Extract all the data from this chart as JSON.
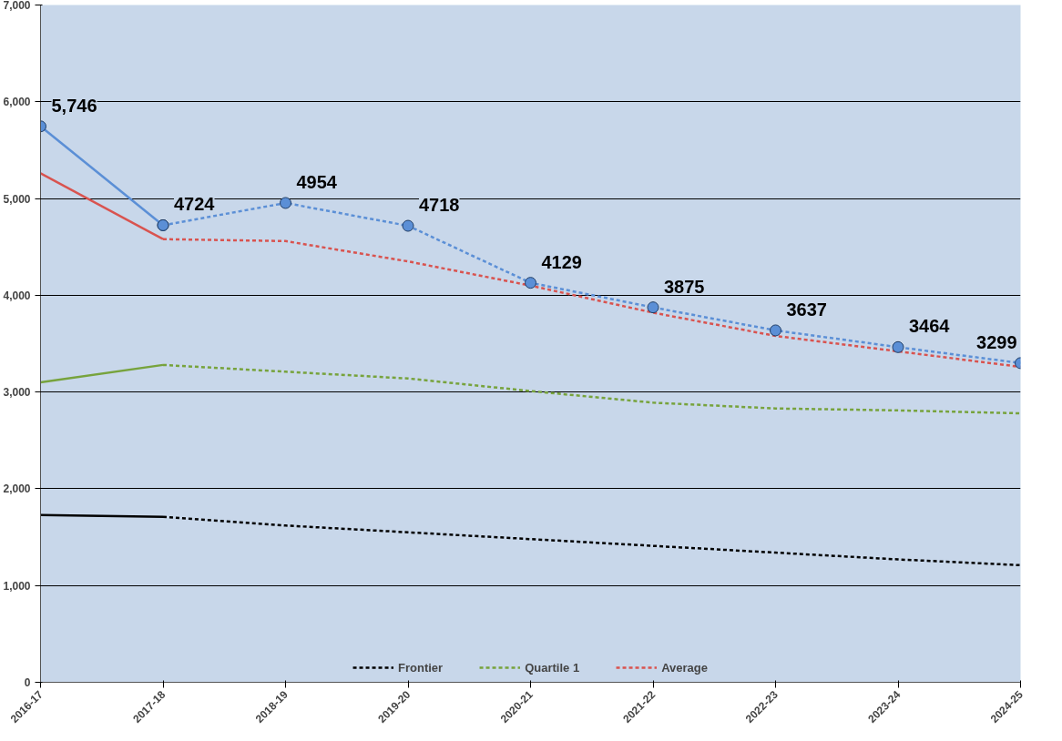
{
  "chart_data": {
    "type": "line",
    "categories": [
      "2016-17",
      "2017-18",
      "2018-19",
      "2019-20",
      "2020-21",
      "2021-22",
      "2022-23",
      "2023-24",
      "2024-25"
    ],
    "ylim": [
      0,
      7000
    ],
    "yticks": [
      {
        "value": 0,
        "label": "0"
      },
      {
        "value": 1000,
        "label": "1,000"
      },
      {
        "value": 2000,
        "label": "2,000"
      },
      {
        "value": 3000,
        "label": "3,000"
      },
      {
        "value": 4000,
        "label": "4,000"
      },
      {
        "value": 5000,
        "label": "5,000"
      },
      {
        "value": 6000,
        "label": "6,000"
      },
      {
        "value": 7000,
        "label": "7,000"
      }
    ],
    "grid": "y",
    "legend": "bottom",
    "series": [
      {
        "color": "#000000",
        "line_style": "solid",
        "marker": "none",
        "x": [
          "2016-17",
          "2017-18"
        ],
        "values": [
          1730,
          1710
        ]
      },
      {
        "name": "Frontier",
        "color": "#000000",
        "line_style": "dashed",
        "marker": "none",
        "x": [
          "2017-18",
          "2018-19",
          "2019-20",
          "2020-21",
          "2021-22",
          "2022-23",
          "2023-24",
          "2024-25"
        ],
        "values": [
          1710,
          1620,
          1550,
          1480,
          1410,
          1340,
          1270,
          1210
        ]
      },
      {
        "color": "#77a33c",
        "line_style": "solid",
        "marker": "none",
        "x": [
          "2016-17",
          "2017-18"
        ],
        "values": [
          3100,
          3280
        ]
      },
      {
        "name": "Quartile 1",
        "color": "#77a33c",
        "line_style": "dashed",
        "marker": "none",
        "x": [
          "2017-18",
          "2018-19",
          "2019-20",
          "2020-21",
          "2021-22",
          "2022-23",
          "2023-24",
          "2024-25"
        ],
        "values": [
          3280,
          3210,
          3140,
          3010,
          2890,
          2830,
          2810,
          2780
        ]
      },
      {
        "color": "#d9534f",
        "line_style": "solid",
        "marker": "none",
        "x": [
          "2016-17",
          "2017-18"
        ],
        "values": [
          5260,
          4580
        ]
      },
      {
        "name": "Average",
        "color": "#d9534f",
        "line_style": "dashed",
        "marker": "none",
        "x": [
          "2017-18",
          "2018-19",
          "2019-20",
          "2020-21",
          "2021-22",
          "2022-23",
          "2023-24",
          "2024-25"
        ],
        "values": [
          4580,
          4560,
          4350,
          4100,
          3820,
          3580,
          3420,
          3260
        ]
      },
      {
        "color": "#5b8fd6",
        "line_style": "solid",
        "marker": "circle",
        "x": [
          "2016-17",
          "2017-18"
        ],
        "values": [
          5746,
          4724
        ],
        "value_labels": [
          "5,746",
          null
        ]
      },
      {
        "color": "#5b8fd6",
        "line_style": "dashed",
        "marker": "circle",
        "x": [
          "2017-18",
          "2018-19",
          "2019-20",
          "2020-21",
          "2021-22",
          "2022-23",
          "2023-24",
          "2024-25"
        ],
        "values": [
          4724,
          4954,
          4718,
          4129,
          3875,
          3637,
          3464,
          3299
        ],
        "value_labels": [
          "4724",
          "4954",
          "4718",
          "4129",
          "3875",
          "3637",
          "3464",
          "3299"
        ]
      }
    ]
  }
}
